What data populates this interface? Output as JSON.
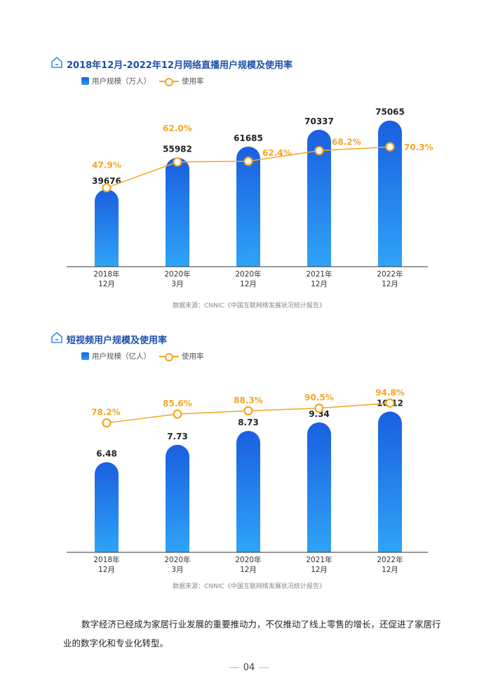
{
  "charts": [
    {
      "title": "2018年12月-2022年12月网络直播用户规模及使用率",
      "legend_bar": "用户规模（万人）",
      "legend_line": "使用率",
      "source": "数据来源：CNNIC《中国互联网络发展状况统计报告》"
    },
    {
      "title": "短视频用户规模及使用率",
      "legend_bar": "用户规模（亿人）",
      "legend_line": "使用率",
      "source": "数据来源：CNNIC《中国互联网络发展状况统计报告》"
    }
  ],
  "chart_data": [
    {
      "type": "bar",
      "title": "2018年12月-2022年12月网络直播用户规模及使用率",
      "categories": [
        [
          "2018年",
          "12月"
        ],
        [
          "2020年",
          "3月"
        ],
        [
          "2020年",
          "12月"
        ],
        [
          "2021年",
          "12月"
        ],
        [
          "2022年",
          "12月"
        ]
      ],
      "series": [
        {
          "name": "用户规模（万人）",
          "type": "bar",
          "values": [
            39676,
            55982,
            61685,
            70337,
            75065
          ],
          "labels": [
            "39676",
            "55982",
            "61685",
            "70337",
            "75065"
          ]
        },
        {
          "name": "使用率",
          "type": "line",
          "values": [
            47.9,
            62.0,
            62.4,
            68.2,
            70.3
          ],
          "labels": [
            "47.9%",
            "62.0%",
            "62.4%",
            "68.2%",
            "70.3%"
          ]
        }
      ],
      "colors": {
        "bar_top": "#1a5fe0",
        "bar_bottom": "#2ea4f7",
        "line": "#f5a623",
        "value_text": "#222222",
        "rate_text": "#f5a623"
      }
    },
    {
      "type": "bar",
      "title": "短视频用户规模及使用率",
      "categories": [
        [
          "2018年",
          "12月"
        ],
        [
          "2020年",
          "3月"
        ],
        [
          "2020年",
          "12月"
        ],
        [
          "2021年",
          "12月"
        ],
        [
          "2022年",
          "12月"
        ]
      ],
      "series": [
        {
          "name": "用户规模（亿人）",
          "type": "bar",
          "values": [
            6.48,
            7.73,
            8.73,
            9.34,
            10.12
          ],
          "labels": [
            "6.48",
            "7.73",
            "8.73",
            "9.34",
            "10.12"
          ]
        },
        {
          "name": "使用率",
          "type": "line",
          "values": [
            78.2,
            85.6,
            88.3,
            90.5,
            94.8
          ],
          "labels": [
            "78.2%",
            "85.6%",
            "88.3%",
            "90.5%",
            "94.8%"
          ]
        }
      ],
      "colors": {
        "bar_top": "#1a5fe0",
        "bar_bottom": "#2ea4f7",
        "line": "#f5a623",
        "value_text": "#222222",
        "rate_text": "#f5a623"
      }
    }
  ],
  "body": {
    "paragraph": "数字经济已经成为家居行业发展的重要推动力，不仅推动了线上零售的增长，还促进了家居行业的数字化和专业化转型。"
  },
  "page": {
    "number": "04"
  }
}
